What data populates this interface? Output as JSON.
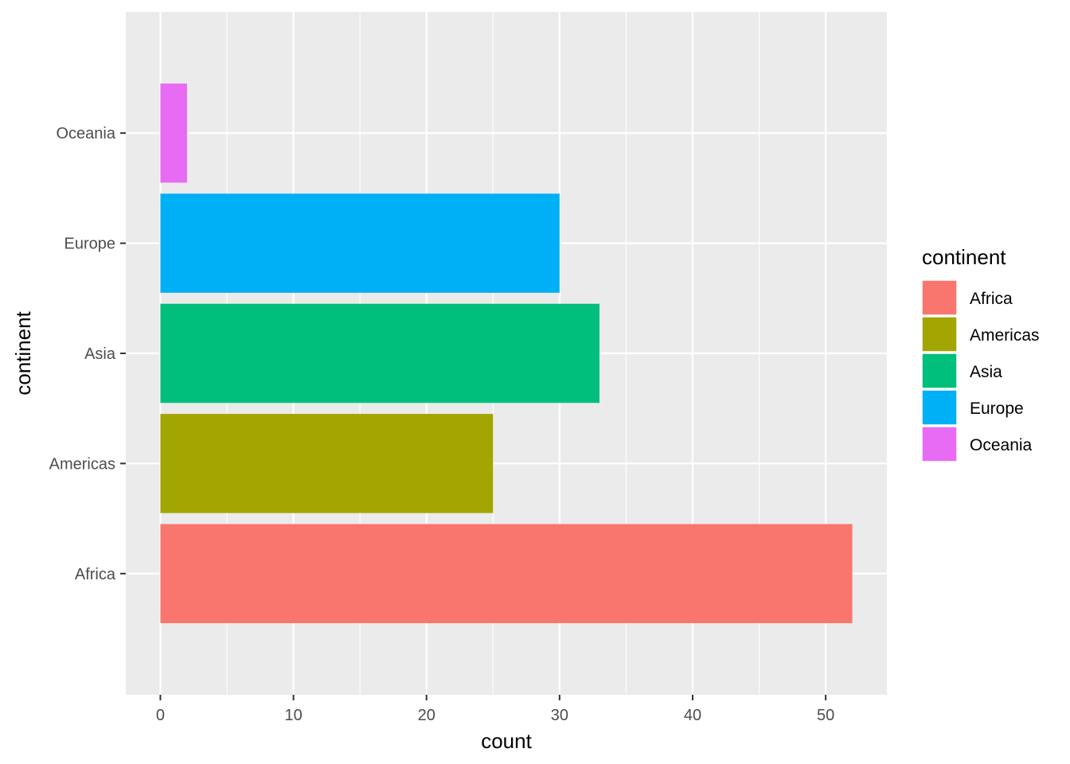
{
  "chart_data": {
    "type": "bar",
    "orientation": "horizontal",
    "categories": [
      "Africa",
      "Americas",
      "Asia",
      "Europe",
      "Oceania"
    ],
    "values": [
      52,
      25,
      33,
      30,
      2
    ],
    "colors": [
      "#F8766D",
      "#A3A500",
      "#00BF7D",
      "#00B0F6",
      "#E76BF3"
    ],
    "xlabel": "count",
    "ylabel": "continent",
    "xlim": [
      -2.6,
      54.6
    ],
    "xticks": [
      0,
      10,
      20,
      30,
      40,
      50
    ],
    "grid": true,
    "panel_background": "#EBEBEB",
    "legend": {
      "title": "continent",
      "position": "right",
      "entries": [
        "Africa",
        "Americas",
        "Asia",
        "Europe",
        "Oceania"
      ]
    }
  }
}
